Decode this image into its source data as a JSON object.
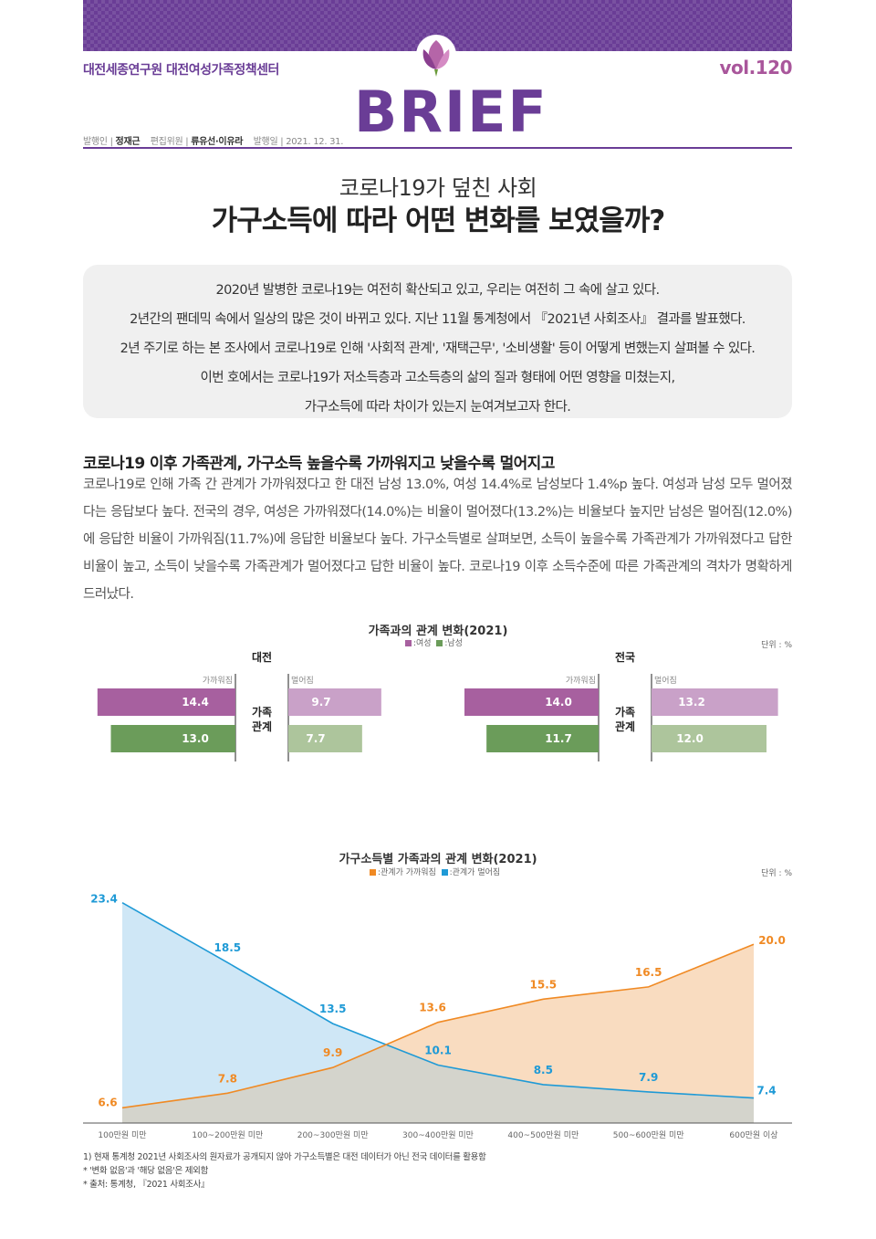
{
  "header": {
    "org": "대전세종연구원 대전여성가족정책센터",
    "volume": "vol.120",
    "logo_text": "BRIEF",
    "publisher_label": "발행인 |",
    "publisher": "정재근",
    "editor_label": "편집위원 |",
    "editors": "류유선·이유라",
    "date_label": "발행일 |",
    "date": "2021. 12. 31."
  },
  "title": {
    "sub": "코로나19가 덮친 사회",
    "main": "가구소득에 따라 어떤 변화를 보였을까?"
  },
  "summary": [
    "2020년 발병한 코로나19는 여전히 확산되고 있고, 우리는 여전히 그 속에 살고 있다.",
    "2년간의 팬데믹 속에서 일상의 많은 것이 바뀌고 있다. 지난 11월 통계청에서 『2021년 사회조사』 결과를 발표했다.",
    "2년 주기로 하는 본 조사에서 코로나19로 인해 '사회적 관계', '재택근무', '소비생활' 등이 어떻게 변했는지 살펴볼 수 있다.",
    "이번 호에서는 코로나19가 저소득층과 고소득층의 삶의 질과 형태에 어떤 영향을 미쳤는지,",
    "가구소득에 따라 차이가 있는지 눈여겨보고자 한다."
  ],
  "section": {
    "heading": "코로나19 이후 가족관계, 가구소득 높을수록 가까워지고 낮을수록 멀어지고",
    "body": "코로나19로 인해 가족 간 관계가 가까워졌다고 한 대전 남성 13.0%, 여성 14.4%로 남성보다 1.4%p 높다. 여성과 남성 모두 멀어졌다는 응답보다 높다. 전국의 경우, 여성은 가까워졌다(14.0%)는 비율이 멀어졌다(13.2%)는 비율보다 높지만 남성은 멀어짐(12.0%)에 응답한 비율이 가까워짐(11.7%)에 응답한 비율보다 높다. 가구소득별로 살펴보면, 소득이 높을수록 가족관계가 가까워졌다고 답한 비율이 높고, 소득이 낮을수록 가족관계가 멀어졌다고 답한 비율이 높다. 코로나19 이후 소득수준에 따른 가족관계의 격차가 명확하게 드러났다."
  },
  "chart_data": [
    {
      "type": "bar",
      "title": "가족과의 관계 변화(2021)",
      "legend": [
        "여성",
        "남성"
      ],
      "legend_labels": [
        ":여성",
        ":남성"
      ],
      "unit": "단위 : %",
      "center_label": [
        "가족",
        "관계"
      ],
      "axis_left_label": "가까워짐",
      "axis_right_label": "멀어짐",
      "colors": {
        "female_close": "#a7609f",
        "female_far": "#c9a1c8",
        "male_close": "#6b9c5a",
        "male_far": "#adc59c"
      },
      "panels": [
        {
          "region": "대전",
          "female": {
            "closer": 14.4,
            "farther": 9.7
          },
          "male": {
            "closer": 13.0,
            "farther": 7.7
          }
        },
        {
          "region": "전국",
          "female": {
            "closer": 14.0,
            "farther": 13.2
          },
          "male": {
            "closer": 11.7,
            "farther": 12.0
          }
        }
      ],
      "labels": {
        "daejeon": {
          "fc": "14.4",
          "ff": "9.7",
          "mc": "13.0",
          "mf": "7.7"
        },
        "national": {
          "fc": "14.0",
          "ff": "13.2",
          "mc": "11.7",
          "mf": "12.0"
        }
      }
    },
    {
      "type": "area",
      "title": "가구소득별 가족과의 관계 변화(2021)",
      "unit": "단위 : %",
      "categories": [
        "100만원 미만",
        "100~200만원 미만",
        "200~300만원 미만",
        "300~400만원 미만",
        "400~500만원 미만",
        "500~600만원 미만",
        "600만원 이상"
      ],
      "series": [
        {
          "name": "관계가 가까워짐",
          "legend_label": ":관계가 가까워짐",
          "color": "#f08a24",
          "values": [
            6.6,
            7.8,
            9.9,
            13.6,
            15.5,
            16.5,
            20.0
          ],
          "labels": [
            "6.6",
            "7.8",
            "9.9",
            "13.6",
            "15.5",
            "16.5",
            "20.0"
          ]
        },
        {
          "name": "관계가 멀어짐",
          "legend_label": ":관계가 멀어짐",
          "color": "#1f9ad6",
          "values": [
            23.4,
            18.5,
            13.5,
            10.1,
            8.5,
            7.9,
            7.4
          ],
          "labels": [
            "23.4",
            "18.5",
            "13.5",
            "10.1",
            "8.5",
            "7.9",
            "7.4"
          ]
        }
      ],
      "ylim": [
        5.5,
        24.5
      ]
    }
  ],
  "notes": [
    "1) 현재 통계청 2021년 사회조사의 원자료가 공개되지 않아 가구소득별은 대전 데이터가 아닌 전국 데이터를 활용함",
    "* '변화 없음'과 '해당 없음'은 제외함",
    "* 출처: 통계청, 『2021 사회조사』"
  ]
}
